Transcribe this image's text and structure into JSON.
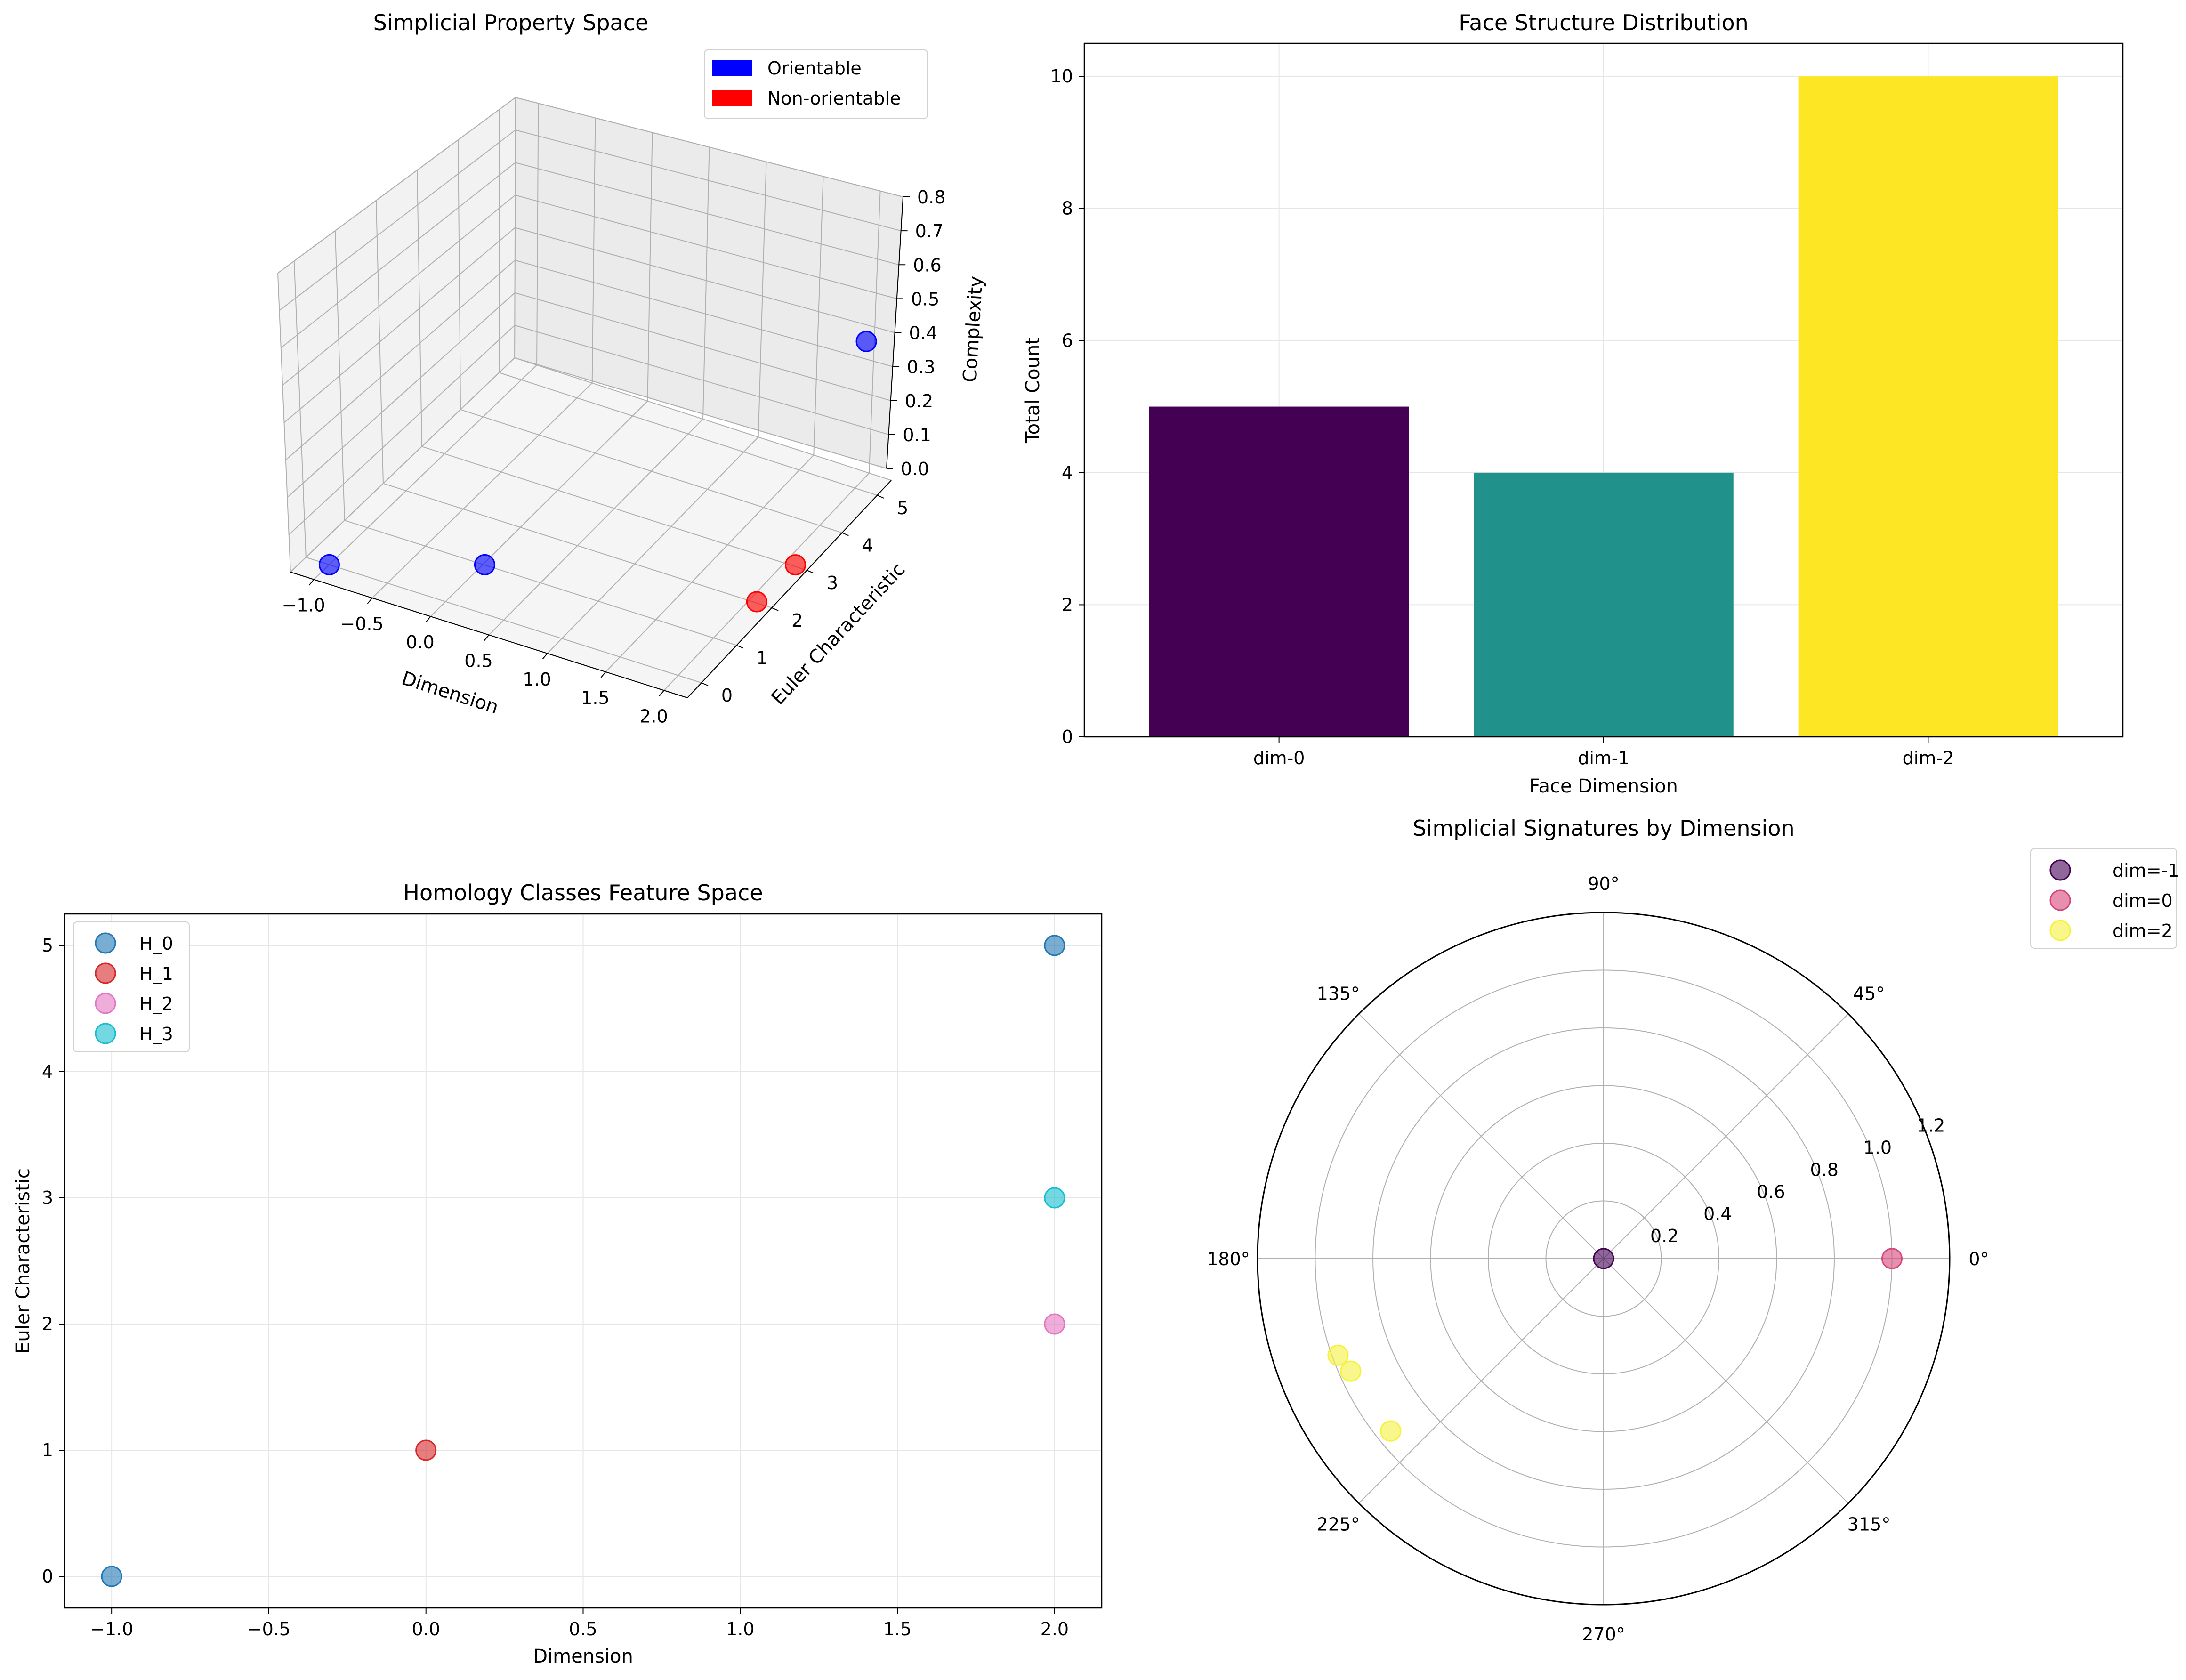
{
  "colors": {
    "orientable": "#0000ff",
    "non_orientable": "#ff0000",
    "grid": "#b0b0b0"
  },
  "chart_data": [
    {
      "type": "scatter",
      "projection": "3d",
      "title": "Simplicial Property Space",
      "xlabel": "Dimension",
      "ylabel": "Euler Characteristic",
      "zlabel": "Complexity",
      "xlim": [
        -1.2,
        2.2
      ],
      "ylim": [
        -0.4,
        5.4
      ],
      "zlim": [
        0.0,
        0.8
      ],
      "xticks": [
        "−1.0",
        "−0.5",
        "0.0",
        "0.5",
        "1.0",
        "1.5",
        "2.0"
      ],
      "yticks": [
        "0",
        "1",
        "2",
        "3",
        "4",
        "5"
      ],
      "zticks": [
        "0.0",
        "0.1",
        "0.2",
        "0.3",
        "0.4",
        "0.5",
        "0.6",
        "0.7",
        "0.8"
      ],
      "legend": {
        "position": "top-right",
        "entries": [
          {
            "label": "Orientable",
            "color": "#0000ff"
          },
          {
            "label": "Non-orientable",
            "color": "#ff0000"
          }
        ]
      },
      "points": [
        {
          "x": -1,
          "y": 0,
          "z": 0.0,
          "orientable": true
        },
        {
          "x": 0,
          "y": 1,
          "z": 0.0,
          "orientable": true
        },
        {
          "x": 2,
          "y": 2,
          "z": 0.0,
          "orientable": false
        },
        {
          "x": 2,
          "y": 3,
          "z": 0.0,
          "orientable": false
        },
        {
          "x": 2,
          "y": 5,
          "z": 0.4,
          "orientable": true
        }
      ],
      "grid": true
    },
    {
      "type": "bar",
      "title": "Face Structure Distribution",
      "xlabel": "Face Dimension",
      "ylabel": "Total Count",
      "categories": [
        "dim-0",
        "dim-1",
        "dim-2"
      ],
      "values": [
        5,
        4,
        10
      ],
      "colors": [
        "#440154",
        "#21918c",
        "#fde725"
      ],
      "ylim": [
        0,
        10.5
      ],
      "yticks": [
        "0",
        "2",
        "4",
        "6",
        "8",
        "10"
      ],
      "grid": true
    },
    {
      "type": "scatter",
      "title": "Homology Classes Feature Space",
      "xlabel": "Dimension",
      "ylabel": "Euler Characteristic",
      "xlim": [
        -1.15,
        2.15
      ],
      "ylim": [
        -0.25,
        5.25
      ],
      "xticks": [
        "−1.0",
        "−0.5",
        "0.0",
        "0.5",
        "1.0",
        "1.5",
        "2.0"
      ],
      "yticks": [
        "0",
        "1",
        "2",
        "3",
        "4",
        "5"
      ],
      "legend": {
        "position": "top-left"
      },
      "series": [
        {
          "name": "H_0",
          "color": "#1f77b4",
          "points": [
            {
              "x": -1,
              "y": 0
            },
            {
              "x": 2,
              "y": 5
            }
          ]
        },
        {
          "name": "H_1",
          "color": "#d62728",
          "points": [
            {
              "x": 0,
              "y": 1
            }
          ]
        },
        {
          "name": "H_2",
          "color": "#e377c2",
          "points": [
            {
              "x": 2,
              "y": 2
            }
          ]
        },
        {
          "name": "H_3",
          "color": "#17becf",
          "points": [
            {
              "x": 2,
              "y": 3
            }
          ]
        }
      ],
      "grid": true
    },
    {
      "type": "scatter",
      "projection": "polar",
      "title": "Simplicial Signatures by Dimension",
      "rlim": [
        0,
        1.2
      ],
      "rticks": [
        "0.2",
        "0.4",
        "0.6",
        "0.8",
        "1.0",
        "1.2"
      ],
      "angle_ticks": [
        "0°",
        "45°",
        "90°",
        "135°",
        "180°",
        "225°",
        "270°",
        "315°"
      ],
      "legend": {
        "position": "outside-top-right"
      },
      "series": [
        {
          "name": "dim=-1",
          "color": "#440154",
          "points": [
            {
              "theta_deg": 0,
              "r": 0.0
            }
          ]
        },
        {
          "name": "dim=0",
          "color": "#d6457a",
          "points": [
            {
              "theta_deg": 0,
              "r": 1.0
            }
          ]
        },
        {
          "name": "dim=2",
          "color": "#f5f23d",
          "points": [
            {
              "theta_deg": 200,
              "r": 0.98
            },
            {
              "theta_deg": 204,
              "r": 0.96
            },
            {
              "theta_deg": 219,
              "r": 0.95
            }
          ]
        }
      ],
      "grid": true
    }
  ]
}
